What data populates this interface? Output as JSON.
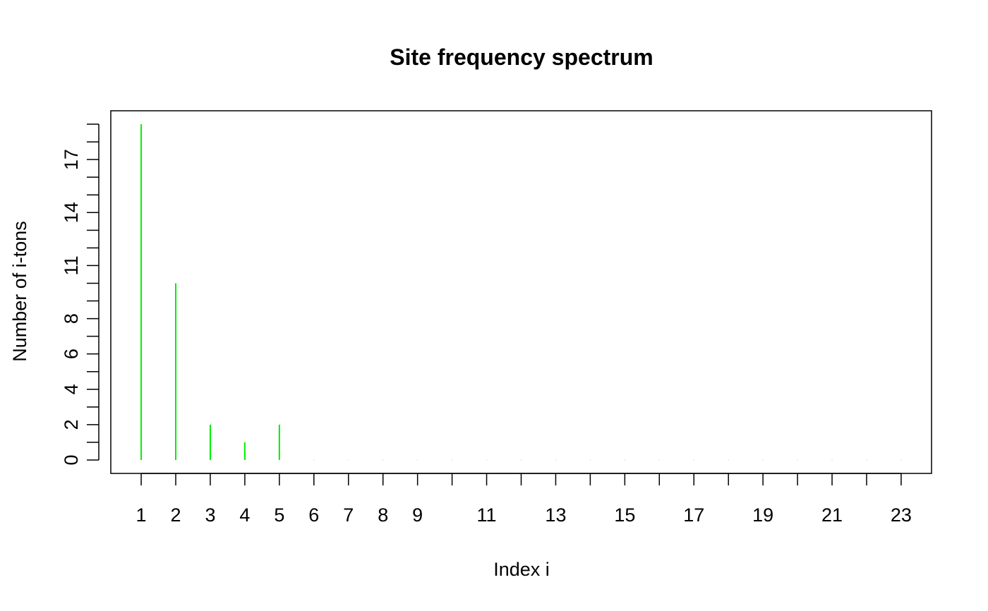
{
  "chart_data": {
    "type": "bar",
    "title": "Site frequency spectrum",
    "xlabel": "Index i",
    "ylabel": "Number of i-tons",
    "x": [
      1,
      2,
      3,
      4,
      5,
      6,
      7,
      8,
      9,
      10,
      11,
      12,
      13,
      14,
      15,
      16,
      17,
      18,
      19,
      20,
      21,
      22,
      23
    ],
    "values": [
      19,
      10,
      2,
      1,
      2,
      0,
      0,
      0,
      0,
      0,
      0,
      0,
      0,
      0,
      0,
      0,
      0,
      0,
      0,
      0,
      0,
      0,
      0
    ],
    "xlim": [
      0.12,
      23.88
    ],
    "ylim": [
      -0.76,
      19.76
    ],
    "x_tick_labels": [
      "1",
      "2",
      "3",
      "4",
      "5",
      "6",
      "7",
      "8",
      "9",
      "11",
      "13",
      "15",
      "17",
      "19",
      "21",
      "23"
    ],
    "y_tick_labels": [
      "0",
      "2",
      "4",
      "6",
      "8",
      "11",
      "14",
      "17"
    ],
    "grid": false,
    "legend": "none",
    "bar_color": "#00ee00"
  }
}
